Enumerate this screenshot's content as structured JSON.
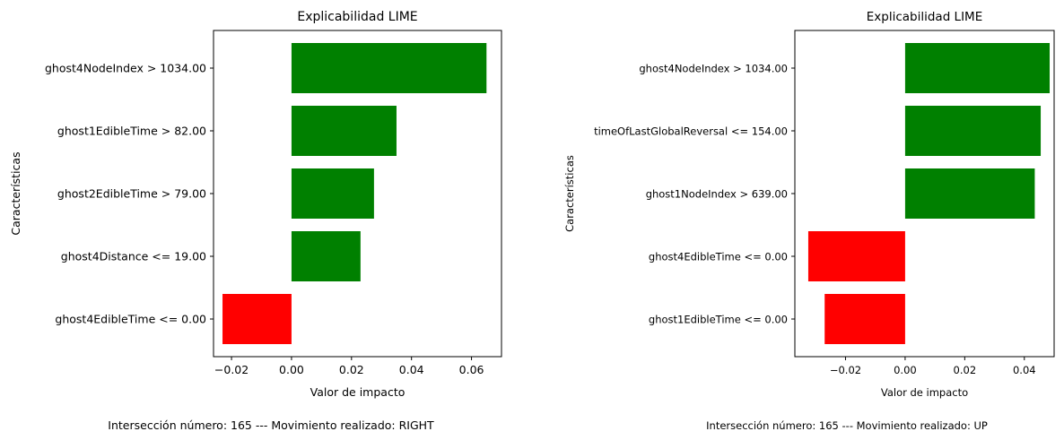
{
  "colors": {
    "positive": "#008000",
    "negative": "#ff0000"
  },
  "chart_data": [
    {
      "type": "bar",
      "orientation": "horizontal",
      "title": "Explicabilidad LIME",
      "xlabel": "Valor de impacto",
      "ylabel": "Características",
      "caption": "Intersección número: 165 --- Movimiento realizado: RIGHT",
      "xlim": [
        -0.026,
        0.07
      ],
      "xticks": [
        -0.02,
        0.0,
        0.02,
        0.04,
        0.06
      ],
      "xtick_labels": [
        "−0.02",
        "0.00",
        "0.02",
        "0.04",
        "0.06"
      ],
      "categories": [
        "ghost4NodeIndex > 1034.00",
        "ghost1EdibleTime > 82.00",
        "ghost2EdibleTime > 79.00",
        "ghost4Distance <= 19.00",
        "ghost4EdibleTime <= 0.00"
      ],
      "values": [
        0.065,
        0.035,
        0.0275,
        0.023,
        -0.023
      ]
    },
    {
      "type": "bar",
      "orientation": "horizontal",
      "title": "Explicabilidad LIME",
      "xlabel": "Valor de impacto",
      "ylabel": "Características",
      "caption": "Intersección número: 165 --- Movimiento realizado: UP",
      "xlim": [
        -0.037,
        0.05
      ],
      "xticks": [
        -0.02,
        0.0,
        0.02,
        0.04
      ],
      "xtick_labels": [
        "−0.02",
        "0.00",
        "0.02",
        "0.04"
      ],
      "categories": [
        "ghost4NodeIndex > 1034.00",
        "timeOfLastGlobalReversal <= 154.00",
        "ghost1NodeIndex > 639.00",
        "ghost4EdibleTime <= 0.00",
        "ghost1EdibleTime <= 0.00"
      ],
      "values": [
        0.0485,
        0.0455,
        0.0435,
        -0.0325,
        -0.027
      ]
    }
  ]
}
